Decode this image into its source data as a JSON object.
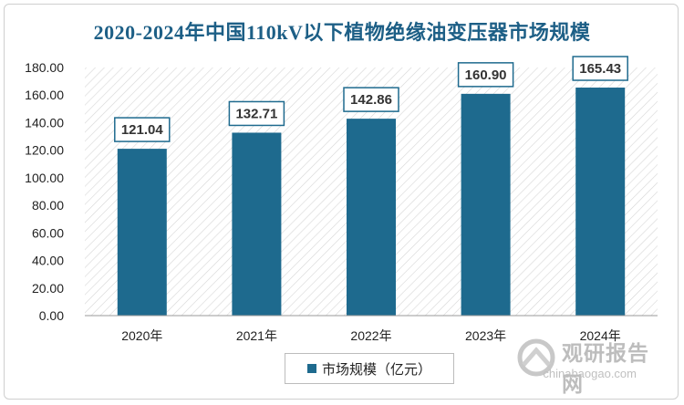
{
  "chart_data": {
    "type": "bar",
    "title": "2020-2024年中国110kV以下植物绝缘油变压器市场规模",
    "categories": [
      "2020年",
      "2021年",
      "2022年",
      "2023年",
      "2024年"
    ],
    "series": [
      {
        "name": "市场规模（亿元）",
        "values": [
          121.04,
          132.71,
          142.86,
          160.9,
          165.43
        ]
      }
    ],
    "ylim": [
      0,
      180
    ],
    "yticks": [
      "0.00",
      "20.00",
      "40.00",
      "60.00",
      "80.00",
      "100.00",
      "120.00",
      "140.00",
      "160.00",
      "180.00"
    ],
    "data_labels": [
      "121.04",
      "132.71",
      "142.86",
      "160.90",
      "165.43"
    ],
    "grid": false,
    "legend_position": "bottom",
    "colors": {
      "bar": "#1e6a8e",
      "title": "#1d5f86",
      "label_border": "#1e6a8e",
      "hatch": "#d9d9d9"
    }
  },
  "watermark": {
    "cn": "观研报告网",
    "en": "chinabaogao.com"
  }
}
